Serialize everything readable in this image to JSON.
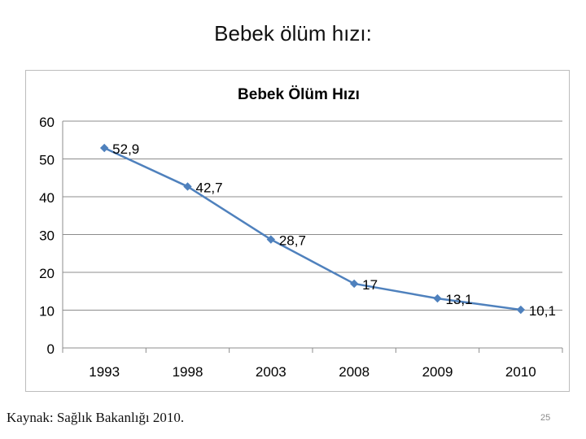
{
  "slide": {
    "title": "Bebek ölüm hızı:",
    "source": "Kaynak: Sağlık Bakanlığı 2010.",
    "page_number": "25"
  },
  "chart_data": {
    "type": "line",
    "title": "Bebek Ölüm Hızı",
    "xlabel": "",
    "ylabel": "",
    "categories": [
      "1993",
      "1998",
      "2003",
      "2008",
      "2009",
      "2010"
    ],
    "series": [
      {
        "values": [
          52.9,
          42.7,
          28.7,
          17,
          13.1,
          10.1
        ],
        "data_labels": [
          "52,9",
          "42,7",
          "28,7",
          "17",
          "13,1",
          "10,1"
        ],
        "color": "#4f81bd"
      }
    ],
    "ylim": [
      0,
      60
    ],
    "yticks": [
      0,
      10,
      20,
      30,
      40,
      50,
      60
    ],
    "grid": true,
    "legend": "none"
  }
}
